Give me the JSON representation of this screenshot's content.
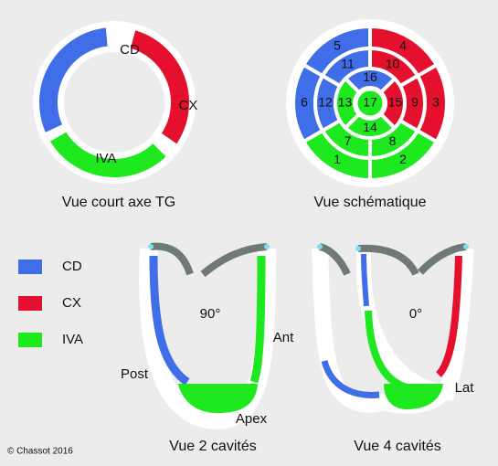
{
  "short_axis": {
    "labels": [
      "CD",
      "CX",
      "IVA"
    ],
    "caption": "Vue court axe TG"
  },
  "bullseye": {
    "segments": [
      "1",
      "2",
      "3",
      "4",
      "5",
      "6",
      "7",
      "8",
      "9",
      "10",
      "11",
      "12",
      "13",
      "14",
      "15",
      "16",
      "17"
    ],
    "caption": "Vue schématique"
  },
  "legend": [
    {
      "label": "CD",
      "color": "#3f6ee8"
    },
    {
      "label": "CX",
      "color": "#e5102e"
    },
    {
      "label": "IVA",
      "color": "#1ee81e"
    }
  ],
  "two_chamber": {
    "angle": "90°",
    "labels": [
      "Ant",
      "Post",
      "Apex"
    ],
    "caption": "Vue 2 cavités"
  },
  "four_chamber": {
    "angle": "0°",
    "labels": [
      "Lat"
    ],
    "caption": "Vue 4 cavités"
  },
  "credit": "© Chassot 2016"
}
